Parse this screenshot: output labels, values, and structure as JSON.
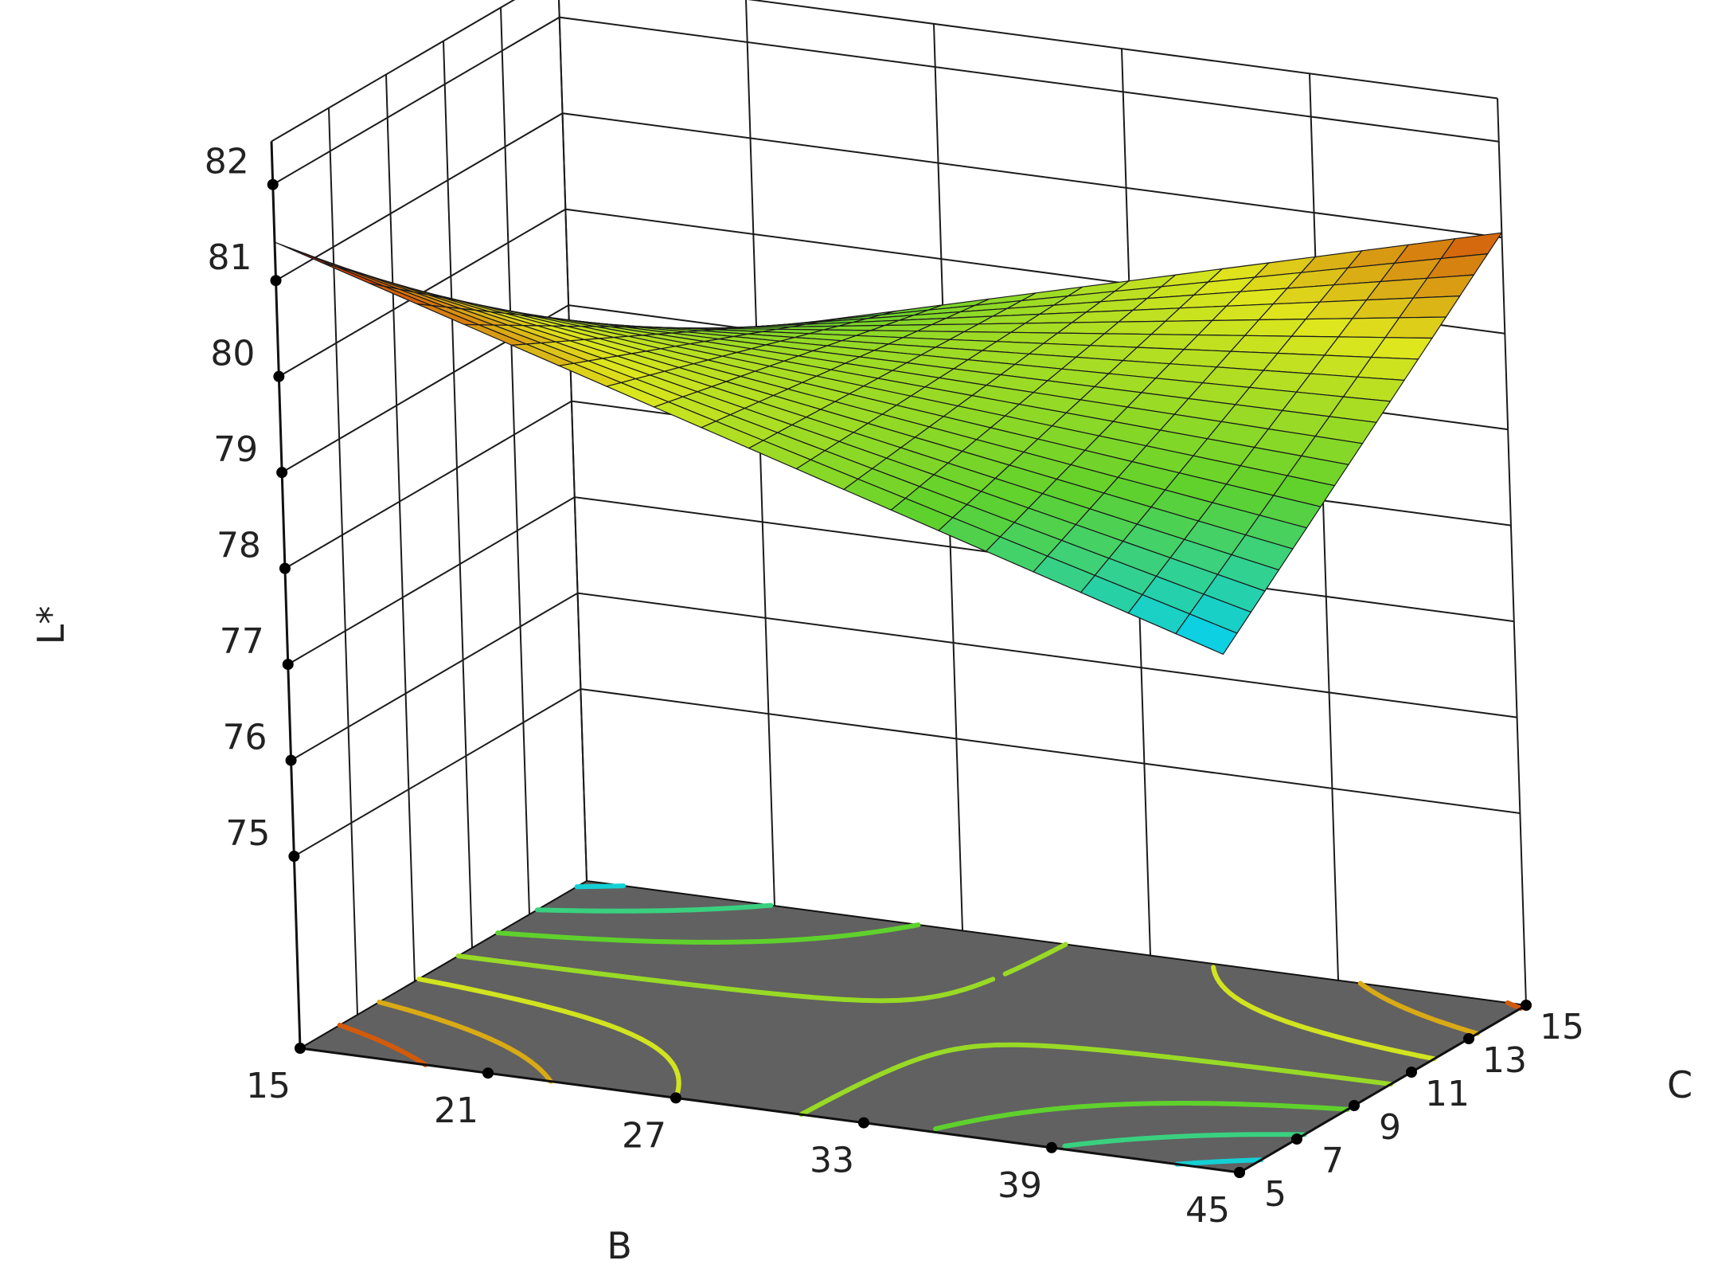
{
  "chart_data": {
    "type": "surface3d",
    "title": "",
    "xlabel": "B",
    "ylabel": "C",
    "zlabel": "L*",
    "x_ticks": [
      15,
      21,
      27,
      33,
      39,
      45
    ],
    "y_ticks": [
      5,
      7,
      9,
      11,
      13,
      15
    ],
    "z_ticks": [
      75,
      76,
      77,
      78,
      79,
      80,
      81,
      82
    ],
    "xlim": [
      15,
      45
    ],
    "ylim": [
      5,
      15
    ],
    "zlim": [
      75,
      82
    ],
    "corner_values": {
      "B15_C5": 81.4,
      "B45_C5": 78.4,
      "B15_C15": 78.5,
      "B45_C15": 81.05
    },
    "surface_grid_steps": 20,
    "floor_contours": true,
    "grid": true,
    "colors": {
      "floor": "#616161",
      "surface_low": "#00d0ff",
      "surface_mid": "#5fd12c",
      "surface_midhigh": "#dfe61d",
      "surface_high": "#cc0a00"
    }
  }
}
